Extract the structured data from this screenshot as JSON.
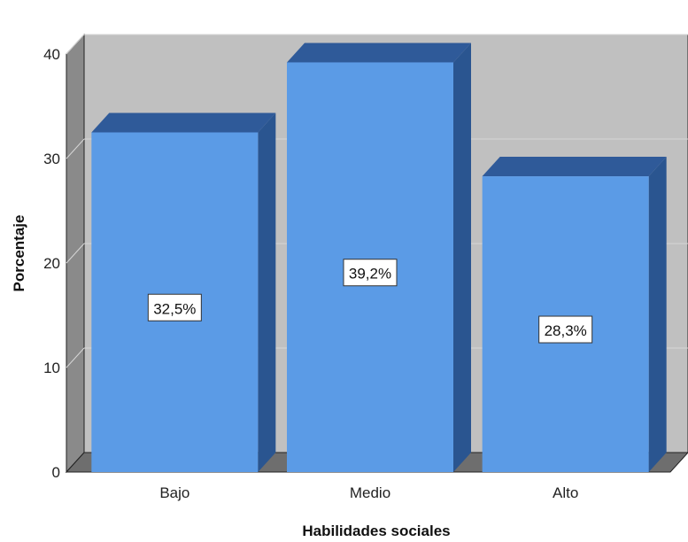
{
  "chart_data": {
    "type": "bar",
    "categories": [
      "Bajo",
      "Medio",
      "Alto"
    ],
    "values": [
      32.5,
      39.2,
      28.3
    ],
    "data_labels": [
      "32,5%",
      "39,2%",
      "28,3%"
    ],
    "title": "",
    "xlabel": "Habilidades sociales",
    "ylabel": "Porcentaje",
    "ylim": [
      0,
      40
    ],
    "yticks": [
      0,
      10,
      20,
      30,
      40
    ],
    "ytick_labels": [
      "0",
      "10",
      "20",
      "30",
      "40"
    ],
    "grid": true,
    "style": "3d",
    "colors": {
      "bar_front": "#5b9be6",
      "bar_top": "#2f5a99",
      "bar_side": "#2a5590",
      "plot_back": "#c0c0c0",
      "plot_floor": "#6e6e6e",
      "plot_left_wall": "#8a8a8a",
      "gridline": "#d6d6d6"
    }
  }
}
